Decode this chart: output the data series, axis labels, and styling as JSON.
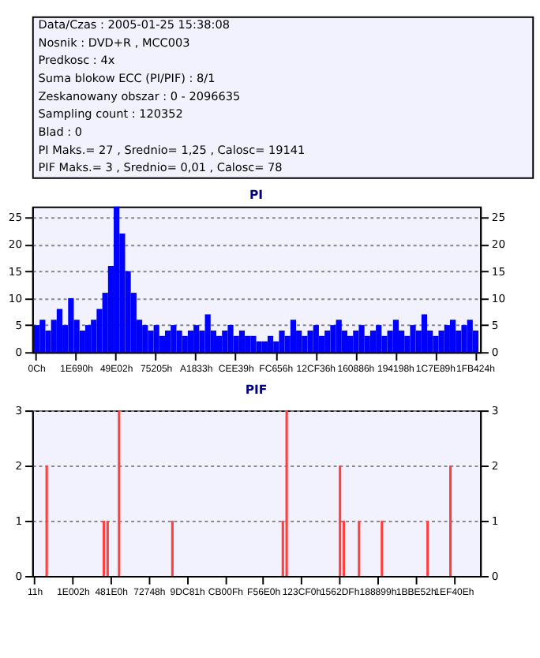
{
  "chart_data": [
    {
      "type": "other",
      "annotations": [
        "Data/Czas : 2005-01-25 15:38:08",
        "Nosnik : DVD+R , MCC003",
        "Predkosc : 4x",
        "Suma blokow ECC (PI/PIF) : 8/1",
        "Zeskanowany obszar : 0 - 2096635",
        "Sampling count : 120352",
        "Blad : 0",
        "PI Maks.= 27 , Srednio= 1,25 , Calosc= 19141",
        "PIF Maks.= 3 , Srednio= 0,01 , Calosc= 78"
      ]
    },
    {
      "type": "bar",
      "title": "PI",
      "color": "#0000ff",
      "categories": [
        "0Ch",
        null,
        null,
        null,
        null,
        null,
        null,
        "1E690h",
        null,
        null,
        null,
        null,
        null,
        null,
        "49E02h",
        null,
        null,
        null,
        null,
        null,
        null,
        "75205h",
        null,
        null,
        null,
        null,
        null,
        null,
        "A1833h",
        null,
        null,
        null,
        null,
        null,
        null,
        "CEE39h",
        null,
        null,
        null,
        null,
        null,
        null,
        "FC656h",
        null,
        null,
        null,
        null,
        null,
        null,
        "12CF36h",
        null,
        null,
        null,
        null,
        null,
        null,
        "160886h",
        null,
        null,
        null,
        null,
        null,
        null,
        "194198h",
        null,
        null,
        null,
        null,
        null,
        null,
        "1C7E89h",
        null,
        null,
        null,
        null,
        null,
        null,
        "1FB424h"
      ],
      "values": [
        5,
        6,
        4,
        6,
        8,
        5,
        10,
        6,
        4,
        5,
        6,
        8,
        11,
        16,
        27,
        22,
        15,
        11,
        6,
        5,
        4,
        5,
        3,
        4,
        5,
        4,
        3,
        4,
        5,
        4,
        7,
        4,
        3,
        4,
        5,
        3,
        4,
        3,
        3,
        2,
        2,
        3,
        2,
        4,
        3,
        6,
        4,
        3,
        4,
        5,
        3,
        4,
        5,
        6,
        4,
        3,
        4,
        5,
        3,
        4,
        5,
        3,
        4,
        6,
        4,
        3,
        5,
        4,
        7,
        4,
        3,
        4,
        5,
        6,
        4,
        5,
        6,
        4
      ],
      "ylim": [
        0,
        27
      ],
      "yticks": [
        0,
        5,
        10,
        15,
        20,
        25
      ],
      "y2lim": [
        0,
        27
      ],
      "y2ticks": [
        0,
        5,
        10,
        15,
        20,
        25
      ],
      "grid": "y"
    },
    {
      "type": "bar",
      "title": "PIF",
      "color": "#ff4040",
      "categories": [
        "11h",
        null,
        null,
        null,
        null,
        null,
        null,
        null,
        null,
        null,
        "1E002h",
        null,
        null,
        null,
        null,
        null,
        null,
        null,
        null,
        null,
        "481E0h",
        null,
        null,
        null,
        null,
        null,
        null,
        null,
        null,
        null,
        "72748h",
        null,
        null,
        null,
        null,
        null,
        null,
        null,
        null,
        null,
        "9DC81h",
        null,
        null,
        null,
        null,
        null,
        null,
        null,
        null,
        null,
        "CB00Fh",
        null,
        null,
        null,
        null,
        null,
        null,
        null,
        null,
        null,
        "F56E0h",
        null,
        null,
        null,
        null,
        null,
        null,
        null,
        null,
        null,
        "123CF0h",
        null,
        null,
        null,
        null,
        null,
        null,
        null,
        null,
        null,
        "1562DFh",
        null,
        null,
        null,
        null,
        null,
        null,
        null,
        null,
        null,
        "188899h",
        null,
        null,
        null,
        null,
        null,
        null,
        null,
        null,
        null,
        "1BBE52h",
        null,
        null,
        null,
        null,
        null,
        null,
        null,
        null,
        null,
        "1EF40Eh",
        null,
        null,
        null,
        null,
        null,
        null
      ],
      "values": [
        null,
        null,
        null,
        2,
        null,
        null,
        null,
        null,
        null,
        null,
        null,
        null,
        null,
        null,
        null,
        null,
        null,
        null,
        1,
        1,
        null,
        null,
        3,
        null,
        null,
        null,
        null,
        null,
        null,
        null,
        null,
        null,
        null,
        null,
        null,
        null,
        1,
        null,
        null,
        null,
        null,
        null,
        null,
        null,
        null,
        null,
        null,
        null,
        null,
        null,
        null,
        null,
        null,
        null,
        null,
        null,
        null,
        null,
        null,
        null,
        null,
        null,
        null,
        null,
        null,
        1,
        3,
        null,
        null,
        null,
        null,
        null,
        null,
        null,
        null,
        null,
        null,
        null,
        null,
        null,
        2,
        1,
        null,
        null,
        null,
        1,
        null,
        null,
        null,
        null,
        null,
        1,
        null,
        null,
        null,
        null,
        null,
        null,
        null,
        null,
        null,
        null,
        null,
        1,
        null,
        null,
        null,
        null,
        null,
        2,
        null,
        null,
        null,
        null,
        null,
        null,
        null
      ],
      "ylim": [
        0,
        3
      ],
      "yticks": [
        0,
        1,
        2,
        3
      ],
      "y2lim": [
        0,
        3
      ],
      "y2ticks": [
        0,
        1,
        2,
        3
      ],
      "grid": "y"
    }
  ]
}
